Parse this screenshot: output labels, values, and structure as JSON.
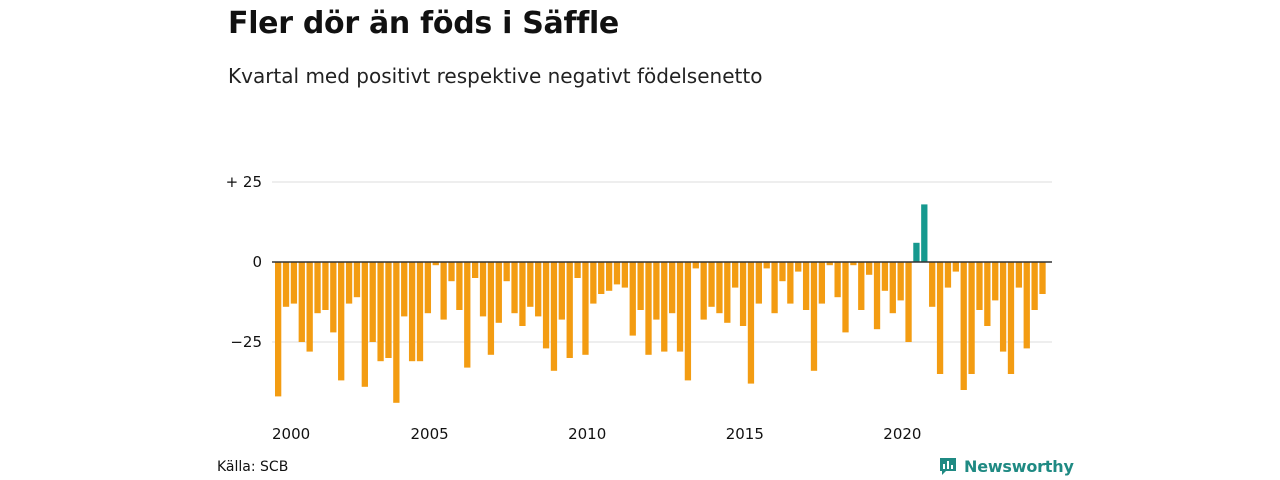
{
  "header": {
    "title": "Fler dör än föds i Säffle",
    "subtitle": "Kvartal med positivt respektive negativt födelsenetto"
  },
  "footer": {
    "source": "Källa: SCB",
    "brand": "Newsworthy",
    "brand_icon": "newsworthy-chart-logo-icon"
  },
  "colors": {
    "negative": "#f39c12",
    "positive": "#16998f",
    "grid": "#dddddd",
    "zero_line": "#333333",
    "brand": "#1f8a83"
  },
  "chart_data": {
    "type": "bar",
    "title": "Fler dör än föds i Säffle",
    "subtitle": "Kvartal med positivt respektive negativt födelsenetto",
    "x_start": 2000,
    "x_interval": "quarter",
    "x_ticks": [
      {
        "year": 2000,
        "label": "2000"
      },
      {
        "year": 2005,
        "label": "2005"
      },
      {
        "year": 2010,
        "label": "2010"
      },
      {
        "year": 2015,
        "label": "2015"
      },
      {
        "year": 2020,
        "label": "2020"
      }
    ],
    "y_ticks": [
      {
        "value": 25,
        "label": "+ 25"
      },
      {
        "value": 0,
        "label": "0"
      },
      {
        "value": -25,
        "label": "−25"
      }
    ],
    "ylim": [
      -45,
      28
    ],
    "grid": true,
    "values": [
      -42,
      -14,
      -13,
      -25,
      -28,
      -16,
      -15,
      -22,
      -37,
      -13,
      -11,
      -39,
      -25,
      -31,
      -30,
      -44,
      -17,
      -31,
      -31,
      -16,
      -1,
      -18,
      -6,
      -15,
      -33,
      -5,
      -17,
      -29,
      -19,
      -6,
      -16,
      -20,
      -14,
      -17,
      -27,
      -34,
      -18,
      -30,
      -5,
      -29,
      -13,
      -10,
      -9,
      -7,
      -8,
      -23,
      -15,
      -29,
      -18,
      -28,
      -16,
      -28,
      -37,
      -2,
      -18,
      -14,
      -16,
      -19,
      -8,
      -20,
      -38,
      -13,
      -2,
      -16,
      -6,
      -13,
      -3,
      -15,
      -34,
      -13,
      -1,
      -11,
      -22,
      -1,
      -15,
      -4,
      -21,
      -9,
      -16,
      -12,
      -25,
      6,
      18,
      -14,
      -35,
      -8,
      -3,
      -40,
      -35,
      -15,
      -20,
      -12,
      -28,
      -35,
      -8,
      -27,
      -15,
      -10
    ]
  }
}
